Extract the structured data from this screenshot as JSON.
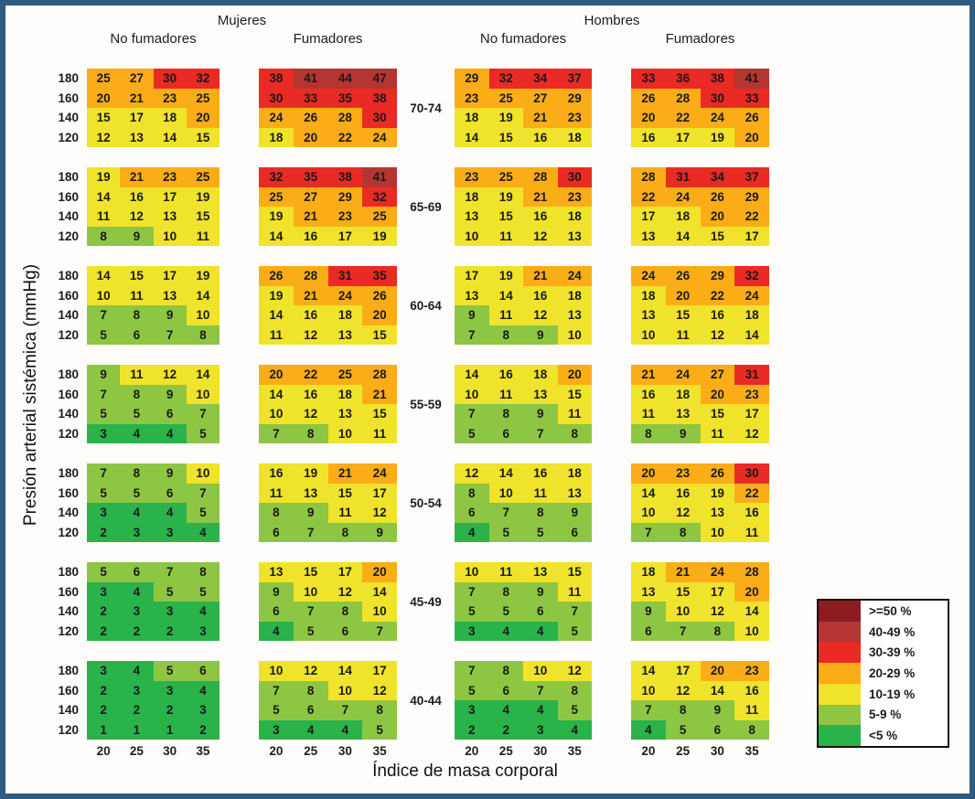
{
  "frame_color": "#2b5d85",
  "headers": {
    "mujeres": "Mujeres",
    "hombres": "Hombres",
    "no_fumadores": "No fumadores",
    "fumadores": "Fumadores"
  },
  "axes": {
    "y_label": "Presión arterial sistémica (mmHg)",
    "x_label": "Índice de masa corporal",
    "bp_ticks": [
      "180",
      "160",
      "140",
      "120"
    ],
    "bmi_ticks": [
      "20",
      "25",
      "30",
      "35"
    ]
  },
  "legend": {
    "entries": [
      {
        "label": ">=50 %",
        "min": 50,
        "color": "#8c1c1f"
      },
      {
        "label": "40-49 %",
        "min": 40,
        "color": "#b43531"
      },
      {
        "label": "30-39 %",
        "min": 30,
        "color": "#ea2a24"
      },
      {
        "label": "20-29 %",
        "min": 20,
        "color": "#fbad18"
      },
      {
        "label": "10-19 %",
        "min": 10,
        "color": "#f0e32b"
      },
      {
        "label": "5-9 %",
        "min": 5,
        "color": "#8dc643"
      },
      {
        "label": "<5 %",
        "min": 0,
        "color": "#2ab34a"
      }
    ]
  },
  "chart_data": {
    "type": "heatmap",
    "x": [
      20,
      25,
      30,
      35
    ],
    "xlabel": "Índice de masa corporal",
    "y": [
      180,
      160,
      140,
      120
    ],
    "ylabel": "Presión arterial sistémica (mmHg)",
    "panel_order": [
      "mujeres_no_fumadores",
      "mujeres_fumadores",
      "hombres_no_fumadores",
      "hombres_fumadores"
    ],
    "panel_labels": [
      "Mujeres No fumadores",
      "Mujeres Fumadores",
      "Hombres No fumadores",
      "Hombres Fumadores"
    ],
    "value_unit": "% risk",
    "age_groups": [
      {
        "label": "70-74",
        "mujeres_no_fumadores": [
          [
            25,
            27,
            30,
            32
          ],
          [
            20,
            21,
            23,
            25
          ],
          [
            15,
            17,
            18,
            20
          ],
          [
            12,
            13,
            14,
            15
          ]
        ],
        "mujeres_fumadores": [
          [
            38,
            41,
            44,
            47
          ],
          [
            30,
            33,
            35,
            38
          ],
          [
            24,
            26,
            28,
            30
          ],
          [
            18,
            20,
            22,
            24
          ]
        ],
        "hombres_no_fumadores": [
          [
            29,
            32,
            34,
            37
          ],
          [
            23,
            25,
            27,
            29
          ],
          [
            18,
            19,
            21,
            23
          ],
          [
            14,
            15,
            16,
            18
          ]
        ],
        "hombres_fumadores": [
          [
            33,
            36,
            38,
            41
          ],
          [
            26,
            28,
            30,
            33
          ],
          [
            20,
            22,
            24,
            26
          ],
          [
            16,
            17,
            19,
            20
          ]
        ]
      },
      {
        "label": "65-69",
        "mujeres_no_fumadores": [
          [
            19,
            21,
            23,
            25
          ],
          [
            14,
            16,
            17,
            19
          ],
          [
            11,
            12,
            13,
            15
          ],
          [
            8,
            9,
            10,
            11
          ]
        ],
        "mujeres_fumadores": [
          [
            32,
            35,
            38,
            41
          ],
          [
            25,
            27,
            29,
            32
          ],
          [
            19,
            21,
            23,
            25
          ],
          [
            14,
            16,
            17,
            19
          ]
        ],
        "hombres_no_fumadores": [
          [
            23,
            25,
            28,
            30
          ],
          [
            18,
            19,
            21,
            23
          ],
          [
            13,
            15,
            16,
            18
          ],
          [
            10,
            11,
            12,
            13
          ]
        ],
        "hombres_fumadores": [
          [
            28,
            31,
            34,
            37
          ],
          [
            22,
            24,
            26,
            29
          ],
          [
            17,
            18,
            20,
            22
          ],
          [
            13,
            14,
            15,
            17
          ]
        ]
      },
      {
        "label": "60-64",
        "mujeres_no_fumadores": [
          [
            14,
            15,
            17,
            19
          ],
          [
            10,
            11,
            13,
            14
          ],
          [
            7,
            8,
            9,
            10
          ],
          [
            5,
            6,
            7,
            8
          ]
        ],
        "mujeres_fumadores": [
          [
            26,
            28,
            31,
            35
          ],
          [
            19,
            21,
            24,
            26
          ],
          [
            14,
            16,
            18,
            20
          ],
          [
            11,
            12,
            13,
            15
          ]
        ],
        "hombres_no_fumadores": [
          [
            17,
            19,
            21,
            24
          ],
          [
            13,
            14,
            16,
            18
          ],
          [
            9,
            11,
            12,
            13
          ],
          [
            7,
            8,
            9,
            10
          ]
        ],
        "hombres_fumadores": [
          [
            24,
            26,
            29,
            32
          ],
          [
            18,
            20,
            22,
            24
          ],
          [
            13,
            15,
            16,
            18
          ],
          [
            10,
            11,
            12,
            14
          ]
        ]
      },
      {
        "label": "55-59",
        "mujeres_no_fumadores": [
          [
            9,
            11,
            12,
            14
          ],
          [
            7,
            8,
            9,
            10
          ],
          [
            5,
            5,
            6,
            7
          ],
          [
            3,
            4,
            4,
            5
          ]
        ],
        "mujeres_fumadores": [
          [
            20,
            22,
            25,
            28
          ],
          [
            14,
            16,
            18,
            21
          ],
          [
            10,
            12,
            13,
            15
          ],
          [
            7,
            8,
            10,
            11
          ]
        ],
        "hombres_no_fumadores": [
          [
            14,
            16,
            18,
            20
          ],
          [
            10,
            11,
            13,
            15
          ],
          [
            7,
            8,
            9,
            11
          ],
          [
            5,
            6,
            7,
            8
          ]
        ],
        "hombres_fumadores": [
          [
            21,
            24,
            27,
            31
          ],
          [
            16,
            18,
            20,
            23
          ],
          [
            11,
            13,
            15,
            17
          ],
          [
            8,
            9,
            11,
            12
          ]
        ]
      },
      {
        "label": "50-54",
        "mujeres_no_fumadores": [
          [
            7,
            8,
            9,
            10
          ],
          [
            5,
            5,
            6,
            7
          ],
          [
            3,
            4,
            4,
            5
          ],
          [
            2,
            3,
            3,
            4
          ]
        ],
        "mujeres_fumadores": [
          [
            16,
            19,
            21,
            24
          ],
          [
            11,
            13,
            15,
            17
          ],
          [
            8,
            9,
            11,
            12
          ],
          [
            6,
            7,
            8,
            9
          ]
        ],
        "hombres_no_fumadores": [
          [
            12,
            14,
            16,
            18
          ],
          [
            8,
            10,
            11,
            13
          ],
          [
            6,
            7,
            8,
            9
          ],
          [
            4,
            5,
            5,
            6
          ]
        ],
        "hombres_fumadores": [
          [
            20,
            23,
            26,
            30
          ],
          [
            14,
            16,
            19,
            22
          ],
          [
            10,
            12,
            13,
            16
          ],
          [
            7,
            8,
            10,
            11
          ]
        ]
      },
      {
        "label": "45-49",
        "mujeres_no_fumadores": [
          [
            5,
            6,
            7,
            8
          ],
          [
            3,
            4,
            5,
            5
          ],
          [
            2,
            3,
            3,
            4
          ],
          [
            2,
            2,
            2,
            3
          ]
        ],
        "mujeres_fumadores": [
          [
            13,
            15,
            17,
            20
          ],
          [
            9,
            10,
            12,
            14
          ],
          [
            6,
            7,
            8,
            10
          ],
          [
            4,
            5,
            6,
            7
          ]
        ],
        "hombres_no_fumadores": [
          [
            10,
            11,
            13,
            15
          ],
          [
            7,
            8,
            9,
            11
          ],
          [
            5,
            5,
            6,
            7
          ],
          [
            3,
            4,
            4,
            5
          ]
        ],
        "hombres_fumadores": [
          [
            18,
            21,
            24,
            28
          ],
          [
            13,
            15,
            17,
            20
          ],
          [
            9,
            10,
            12,
            14
          ],
          [
            6,
            7,
            8,
            10
          ]
        ]
      },
      {
        "label": "40-44",
        "mujeres_no_fumadores": [
          [
            3,
            4,
            5,
            6
          ],
          [
            2,
            3,
            3,
            4
          ],
          [
            2,
            2,
            2,
            3
          ],
          [
            1,
            1,
            1,
            2
          ]
        ],
        "mujeres_fumadores": [
          [
            10,
            12,
            14,
            17
          ],
          [
            7,
            8,
            10,
            12
          ],
          [
            5,
            6,
            7,
            8
          ],
          [
            3,
            4,
            4,
            5
          ]
        ],
        "hombres_no_fumadores": [
          [
            7,
            8,
            10,
            12
          ],
          [
            5,
            6,
            7,
            8
          ],
          [
            3,
            4,
            4,
            5
          ],
          [
            2,
            2,
            3,
            4
          ]
        ],
        "hombres_fumadores": [
          [
            14,
            17,
            20,
            23
          ],
          [
            10,
            12,
            14,
            16
          ],
          [
            7,
            8,
            9,
            11
          ],
          [
            4,
            5,
            6,
            8
          ]
        ]
      }
    ]
  }
}
